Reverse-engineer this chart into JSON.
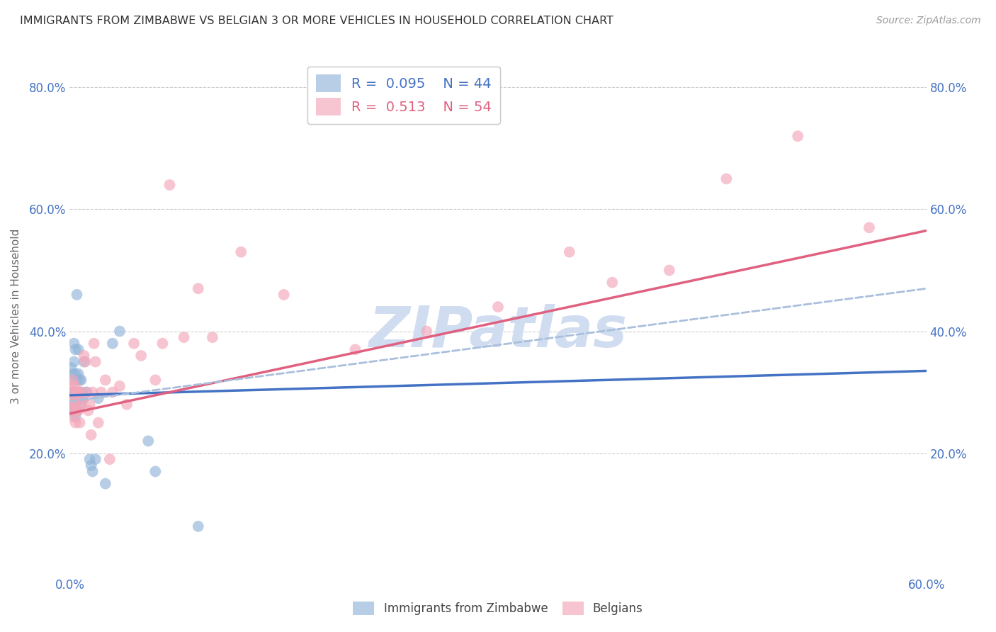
{
  "title": "IMMIGRANTS FROM ZIMBABWE VS BELGIAN 3 OR MORE VEHICLES IN HOUSEHOLD CORRELATION CHART",
  "source": "Source: ZipAtlas.com",
  "ylabel": "3 or more Vehicles in Household",
  "legend1_label": "Immigrants from Zimbabwe",
  "legend2_label": "Belgians",
  "R1": 0.095,
  "N1": 44,
  "R2": 0.513,
  "N2": 54,
  "blue_color": "#92b4d9",
  "pink_color": "#f4a7b9",
  "trend_blue_color": "#4472c4",
  "trend_pink_color": "#e06080",
  "trend_dashed_color": "#aabfdc",
  "axis_label_color": "#4472c4",
  "watermark_color": "#d0ddf0",
  "background_color": "#ffffff",
  "grid_color": "#cccccc",
  "title_color": "#333333",
  "blue_points_x": [
    0.001,
    0.001,
    0.001,
    0.001,
    0.002,
    0.002,
    0.002,
    0.002,
    0.003,
    0.003,
    0.003,
    0.003,
    0.003,
    0.004,
    0.004,
    0.004,
    0.004,
    0.004,
    0.005,
    0.005,
    0.005,
    0.005,
    0.006,
    0.006,
    0.006,
    0.007,
    0.007,
    0.008,
    0.008,
    0.009,
    0.01,
    0.01,
    0.012,
    0.014,
    0.015,
    0.016,
    0.018,
    0.02,
    0.025,
    0.03,
    0.035,
    0.055,
    0.06,
    0.09
  ],
  "blue_points_y": [
    0.28,
    0.3,
    0.32,
    0.34,
    0.27,
    0.28,
    0.3,
    0.33,
    0.27,
    0.29,
    0.3,
    0.35,
    0.38,
    0.26,
    0.28,
    0.3,
    0.33,
    0.37,
    0.27,
    0.3,
    0.32,
    0.46,
    0.3,
    0.33,
    0.37,
    0.29,
    0.32,
    0.28,
    0.32,
    0.3,
    0.29,
    0.35,
    0.3,
    0.19,
    0.18,
    0.17,
    0.19,
    0.29,
    0.15,
    0.38,
    0.4,
    0.22,
    0.17,
    0.08
  ],
  "pink_points_x": [
    0.001,
    0.001,
    0.002,
    0.002,
    0.002,
    0.003,
    0.003,
    0.003,
    0.004,
    0.004,
    0.004,
    0.005,
    0.005,
    0.006,
    0.006,
    0.007,
    0.007,
    0.008,
    0.009,
    0.01,
    0.011,
    0.012,
    0.013,
    0.014,
    0.015,
    0.016,
    0.017,
    0.018,
    0.02,
    0.022,
    0.025,
    0.028,
    0.03,
    0.035,
    0.04,
    0.045,
    0.05,
    0.06,
    0.065,
    0.07,
    0.08,
    0.09,
    0.1,
    0.12,
    0.15,
    0.2,
    0.25,
    0.3,
    0.35,
    0.38,
    0.42,
    0.46,
    0.51,
    0.56
  ],
  "pink_points_y": [
    0.28,
    0.31,
    0.26,
    0.29,
    0.32,
    0.27,
    0.29,
    0.3,
    0.25,
    0.28,
    0.31,
    0.27,
    0.3,
    0.27,
    0.3,
    0.25,
    0.3,
    0.28,
    0.29,
    0.36,
    0.35,
    0.3,
    0.27,
    0.28,
    0.23,
    0.3,
    0.38,
    0.35,
    0.25,
    0.3,
    0.32,
    0.19,
    0.3,
    0.31,
    0.28,
    0.38,
    0.36,
    0.32,
    0.38,
    0.64,
    0.39,
    0.47,
    0.39,
    0.53,
    0.46,
    0.37,
    0.4,
    0.44,
    0.53,
    0.48,
    0.5,
    0.65,
    0.72,
    0.57
  ],
  "xmin": 0.0,
  "xmax": 0.6,
  "ymin": 0.0,
  "ymax": 0.85,
  "yticks": [
    0.0,
    0.2,
    0.4,
    0.6,
    0.8
  ],
  "ytick_labels": [
    "",
    "20.0%",
    "40.0%",
    "60.0%",
    "80.0%"
  ],
  "xticks": [
    0.0,
    0.1,
    0.2,
    0.3,
    0.4,
    0.5,
    0.6
  ],
  "xtick_labels": [
    "0.0%",
    "",
    "",
    "",
    "",
    "",
    "60.0%"
  ],
  "blue_trend_start_y": 0.295,
  "blue_trend_end_y": 0.335,
  "pink_trend_start_y": 0.265,
  "pink_trend_end_y": 0.565,
  "dashed_trend_start_y": 0.285,
  "dashed_trend_end_y": 0.47
}
